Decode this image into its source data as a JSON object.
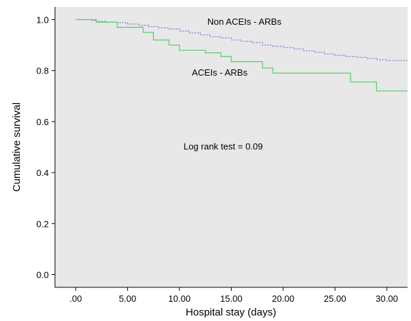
{
  "chart_data": {
    "type": "line",
    "chart_kind": "kaplan-meier step",
    "title": "",
    "xlabel": "Hospital stay (days)",
    "ylabel": "Cumulative survival",
    "xlim": [
      -2,
      32
    ],
    "ylim": [
      -0.05,
      1.05
    ],
    "x_ticks": [
      0,
      5,
      10,
      15,
      20,
      25,
      30
    ],
    "x_tick_labels": [
      ".00",
      "5.00",
      "10.00",
      "15.00",
      "20.00",
      "25.00",
      "30.00"
    ],
    "y_ticks": [
      0.0,
      0.2,
      0.4,
      0.6,
      0.8,
      1.0
    ],
    "y_tick_labels": [
      "0.0",
      "0.2",
      "0.4",
      "0.6",
      "0.8",
      "1.0"
    ],
    "grid": false,
    "plot_background": "#e8e8e8",
    "series": [
      {
        "label": "Non ACEIs - ARBs",
        "color": "#7b86d6",
        "dash": "dotted",
        "points": [
          [
            0,
            1.0
          ],
          [
            1.5,
            0.997
          ],
          [
            2.0,
            0.993
          ],
          [
            3.0,
            0.99
          ],
          [
            4.0,
            0.988
          ],
          [
            5.0,
            0.983
          ],
          [
            6.0,
            0.978
          ],
          [
            7.0,
            0.973
          ],
          [
            8.0,
            0.968
          ],
          [
            9.0,
            0.963
          ],
          [
            10.0,
            0.955
          ],
          [
            11.0,
            0.948
          ],
          [
            12.0,
            0.94
          ],
          [
            13.0,
            0.933
          ],
          [
            14.0,
            0.928
          ],
          [
            15.0,
            0.92
          ],
          [
            16.0,
            0.915
          ],
          [
            17.0,
            0.91
          ],
          [
            18.0,
            0.9
          ],
          [
            19.0,
            0.895
          ],
          [
            20.0,
            0.89
          ],
          [
            21.0,
            0.885
          ],
          [
            22.0,
            0.878
          ],
          [
            23.0,
            0.872
          ],
          [
            24.0,
            0.865
          ],
          [
            25.0,
            0.86
          ],
          [
            26.0,
            0.855
          ],
          [
            27.0,
            0.852
          ],
          [
            28.0,
            0.848
          ],
          [
            29.0,
            0.843
          ],
          [
            30.0,
            0.84
          ],
          [
            32.0,
            0.84
          ]
        ]
      },
      {
        "label": "ACEIs - ARBs",
        "color": "#5fcf6f",
        "dash": "solid",
        "points": [
          [
            0,
            1.0
          ],
          [
            2.0,
            0.99
          ],
          [
            4.0,
            0.97
          ],
          [
            6.5,
            0.95
          ],
          [
            7.5,
            0.92
          ],
          [
            9.0,
            0.9
          ],
          [
            10.0,
            0.88
          ],
          [
            12.5,
            0.87
          ],
          [
            14.0,
            0.855
          ],
          [
            15.0,
            0.835
          ],
          [
            18.0,
            0.81
          ],
          [
            19.0,
            0.79
          ],
          [
            26.5,
            0.755
          ],
          [
            29.0,
            0.72
          ],
          [
            32.0,
            0.72
          ]
        ]
      }
    ],
    "annotations": [
      {
        "text": "Non ACEIs - ARBs",
        "x": 12.7,
        "y": 0.98
      },
      {
        "text": "ACEIs - ARBs",
        "x": 11.2,
        "y": 0.78
      },
      {
        "text": "Log rank test = 0.09",
        "x": 10.4,
        "y": 0.49
      }
    ]
  }
}
